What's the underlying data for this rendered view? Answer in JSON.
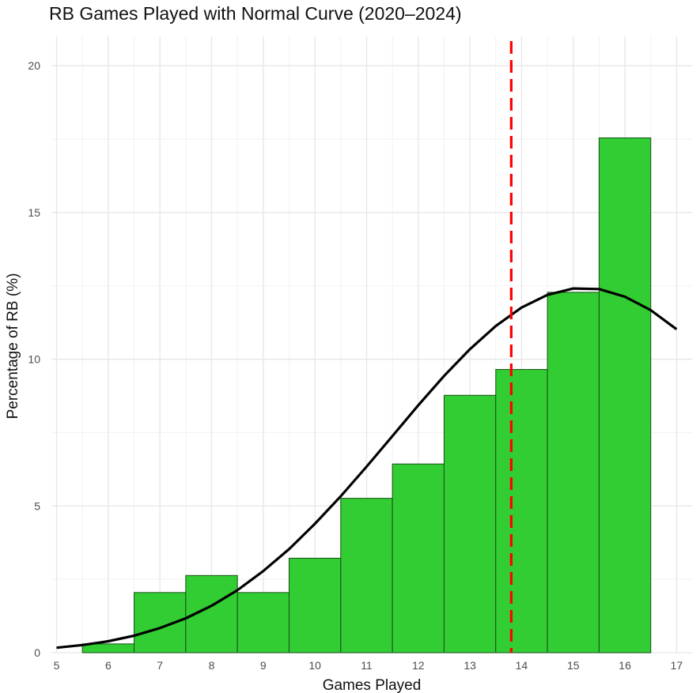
{
  "chart_data": {
    "type": "bar",
    "title": "RB Games Played with Normal Curve (2020–2024)",
    "xlabel": "Games Played",
    "ylabel": "Percentage of RB (%)",
    "xlim": [
      4.9,
      17.3
    ],
    "ylim": [
      0,
      21
    ],
    "x_ticks": [
      "5",
      "6",
      "7",
      "8",
      "9",
      "10",
      "11",
      "12",
      "13",
      "14",
      "15",
      "16",
      "17"
    ],
    "y_ticks": [
      "0",
      "5",
      "10",
      "15",
      "20"
    ],
    "categories": [
      "6",
      "7",
      "8",
      "9",
      "10",
      "11",
      "12",
      "13",
      "14",
      "15",
      "16"
    ],
    "values": [
      0.3,
      2.05,
      2.63,
      2.05,
      3.22,
      5.26,
      6.43,
      8.77,
      9.65,
      12.28,
      17.54
    ],
    "bar_color": "#32cd32",
    "bar_edge_color": "#1a4d1a",
    "normal_curve": {
      "x": [
        5.0,
        5.5,
        6.0,
        6.5,
        7.0,
        7.5,
        8.0,
        8.5,
        9.0,
        9.5,
        10.0,
        10.5,
        11.0,
        11.5,
        12.0,
        12.5,
        13.0,
        13.5,
        14.0,
        14.5,
        15.0,
        15.5,
        16.0,
        16.5,
        17.0
      ],
      "y": [
        0.17,
        0.26,
        0.39,
        0.58,
        0.84,
        1.17,
        1.6,
        2.13,
        2.78,
        3.53,
        4.39,
        5.33,
        6.34,
        7.38,
        8.43,
        9.43,
        10.34,
        11.13,
        11.76,
        12.19,
        12.41,
        12.39,
        12.13,
        11.67,
        11.02
      ],
      "color": "#000000"
    },
    "mean_line": {
      "x": 13.8,
      "color": "#ff0000"
    },
    "grid": true,
    "legend": "none"
  }
}
